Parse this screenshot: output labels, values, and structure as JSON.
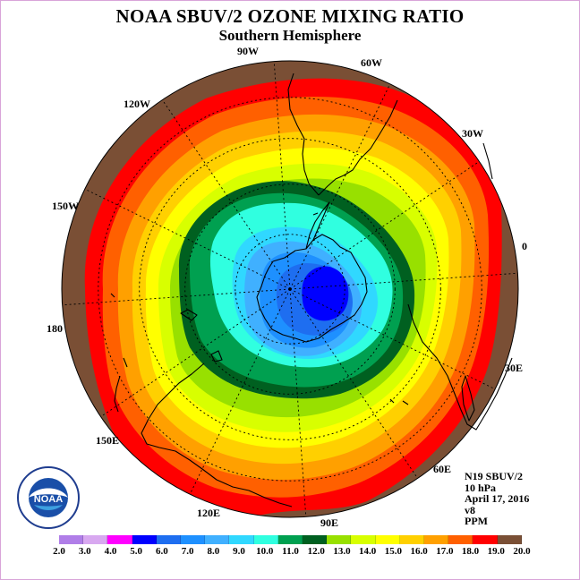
{
  "header": {
    "title": "NOAA SBUV/2 OZONE MIXING RATIO",
    "subtitle": "Southern Hemisphere"
  },
  "longitude_labels": [
    "90W",
    "60W",
    "30W",
    "0",
    "30E",
    "60E",
    "90E",
    "120E",
    "150E",
    "180",
    "150W",
    "120W"
  ],
  "info": {
    "satellite": "N19 SBUV/2",
    "level": "10 hPa",
    "date": "April 17, 2016",
    "version": "v8",
    "units": "PPM"
  },
  "logo": {
    "text": "NOAA",
    "icon": "noaa-logo"
  },
  "legend": {
    "ticks": [
      "2.0",
      "3.0",
      "4.0",
      "5.0",
      "6.0",
      "7.0",
      "8.0",
      "9.0",
      "10.0",
      "11.0",
      "12.0",
      "13.0",
      "14.0",
      "15.0",
      "16.0",
      "17.0",
      "18.0",
      "19.0",
      "20.0"
    ],
    "colors": [
      "#b07ee8",
      "#d8a8f0",
      "#ff00ff",
      "#0000ff",
      "#1e6ef0",
      "#1e90ff",
      "#40b0ff",
      "#30d8ff",
      "#30ffe0",
      "#00a050",
      "#006020",
      "#98e000",
      "#d8ff00",
      "#ffff00",
      "#ffd000",
      "#ffa000",
      "#ff6000",
      "#ff0000",
      "#7a4f35"
    ]
  },
  "map_colors": {
    "background_ring": "#7a4f35",
    "graticule": "#000000",
    "coastline": "#000000"
  }
}
